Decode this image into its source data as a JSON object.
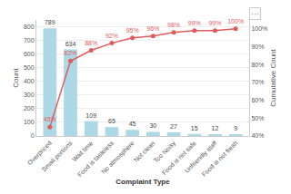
{
  "chart_data": {
    "type": "bar",
    "xlabel": "Complaint Type",
    "ylabel": "Count",
    "y2label": "Cumulative Count",
    "categories": [
      "Overpriced",
      "Small portions",
      "Wait time",
      "Food is tasteless",
      "No atmosphere",
      "Not clean",
      "Too Noisy",
      "Food is not safe",
      "Unfriendly staff",
      "Food is not fresh"
    ],
    "series": [
      {
        "type": "bar",
        "color": "#add8e6",
        "values": [
          789,
          634,
          109,
          65,
          45,
          30,
          27,
          15,
          12,
          9
        ],
        "data_labels": true
      },
      {
        "type": "line",
        "axis": "y2",
        "color": "#e05c5c",
        "marker": "circle",
        "line_style": "solid",
        "values": [
          45,
          82,
          88,
          92,
          95,
          96,
          98,
          99,
          99,
          100
        ],
        "value_labels": [
          "45%",
          "82%",
          "88%",
          "92%",
          "95%",
          "96%",
          "98%",
          "99%",
          "99%",
          "100%"
        ],
        "data_labels": true
      }
    ],
    "ylim": [
      0,
      850
    ],
    "yticks": [
      0,
      100,
      200,
      300,
      400,
      500,
      600,
      700,
      800
    ],
    "y2lim": [
      40,
      105
    ],
    "y2ticks": [
      {
        "value": 40,
        "label": "40%"
      },
      {
        "value": 50,
        "label": "50%"
      },
      {
        "value": 60,
        "label": "60%"
      },
      {
        "value": 70,
        "label": "70%"
      },
      {
        "value": 80,
        "label": "80%"
      },
      {
        "value": 90,
        "label": "90%"
      },
      {
        "value": 100,
        "label": "100%"
      }
    ],
    "grid": true,
    "annotations": [
      "···"
    ]
  }
}
